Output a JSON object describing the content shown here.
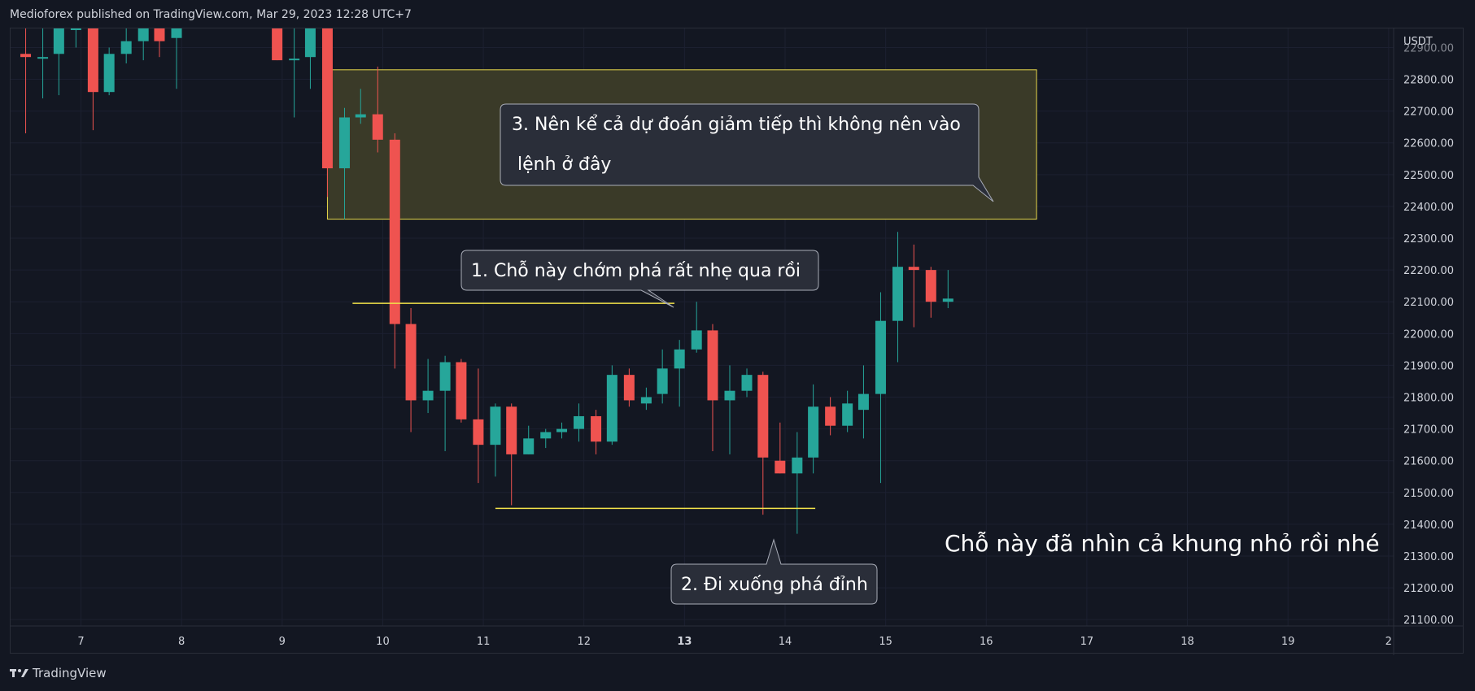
{
  "header": {
    "publisher_line": "Medioforex published on TradingView.com, Mar 29, 2023 12:28 UTC+7"
  },
  "footer": {
    "brand": "TradingView"
  },
  "colors": {
    "background": "#131722",
    "bull": "#26a69a",
    "bear": "#ef5350",
    "zone_fill": "#3a3a28",
    "zone_border": "#e6d84a",
    "level_line": "#f2e24a",
    "callout_bg": "#2a2e39",
    "callout_border": "#a9adb8",
    "grid": "#1c2030"
  },
  "chart_data": {
    "type": "candlestick",
    "currency_label": "USDT",
    "y_ticks": [
      "22900.00",
      "22800.00",
      "22700.00",
      "22600.00",
      "22500.00",
      "22400.00",
      "22300.00",
      "22200.00",
      "22100.00",
      "22000.00",
      "21900.00",
      "21800.00",
      "21700.00",
      "21600.00",
      "21500.00",
      "21400.00",
      "21300.00",
      "21200.00",
      "21100.00"
    ],
    "ylim": [
      21080,
      22960
    ],
    "x_ticks": [
      {
        "label": "7",
        "bold": false
      },
      {
        "label": "8",
        "bold": false
      },
      {
        "label": "9",
        "bold": false
      },
      {
        "label": "10",
        "bold": false
      },
      {
        "label": "11",
        "bold": false
      },
      {
        "label": "12",
        "bold": false
      },
      {
        "label": "13",
        "bold": true
      },
      {
        "label": "14",
        "bold": false
      },
      {
        "label": "15",
        "bold": false
      },
      {
        "label": "16",
        "bold": false
      },
      {
        "label": "17",
        "bold": false
      },
      {
        "label": "18",
        "bold": false
      },
      {
        "label": "19",
        "bold": false
      },
      {
        "label": "2",
        "bold": false
      }
    ],
    "x_range_days": [
      6.3,
      20.05
    ],
    "candles": [
      {
        "t": 6.45,
        "o": 22880,
        "h": 22960,
        "l": 22630,
        "c": 22870
      },
      {
        "t": 6.62,
        "o": 22870,
        "h": 22960,
        "l": 22740,
        "c": 22870
      },
      {
        "t": 6.78,
        "o": 22880,
        "h": 22990,
        "l": 22750,
        "c": 22990
      },
      {
        "t": 6.95,
        "o": 22960,
        "h": 23010,
        "l": 22900,
        "c": 22960
      },
      {
        "t": 7.12,
        "o": 22990,
        "h": 23010,
        "l": 22640,
        "c": 22760
      },
      {
        "t": 7.28,
        "o": 22760,
        "h": 22900,
        "l": 22750,
        "c": 22880
      },
      {
        "t": 7.45,
        "o": 22880,
        "h": 22980,
        "l": 22850,
        "c": 22920
      },
      {
        "t": 7.62,
        "o": 22920,
        "h": 23010,
        "l": 22860,
        "c": 22990
      },
      {
        "t": 7.78,
        "o": 22990,
        "h": 23010,
        "l": 22870,
        "c": 22920
      },
      {
        "t": 7.95,
        "o": 22930,
        "h": 23010,
        "l": 22770,
        "c": 22990
      },
      {
        "t": 8.95,
        "o": 22990,
        "h": 23010,
        "l": 22860,
        "c": 22860
      },
      {
        "t": 9.12,
        "o": 22860,
        "h": 22990,
        "l": 22680,
        "c": 22865
      },
      {
        "t": 9.28,
        "o": 22870,
        "h": 22990,
        "l": 22770,
        "c": 22960
      },
      {
        "t": 9.45,
        "o": 22960,
        "h": 22980,
        "l": 22430,
        "c": 22520
      },
      {
        "t": 9.62,
        "o": 22520,
        "h": 22710,
        "l": 22360,
        "c": 22680
      },
      {
        "t": 9.78,
        "o": 22680,
        "h": 22770,
        "l": 22660,
        "c": 22690
      },
      {
        "t": 9.95,
        "o": 22690,
        "h": 22840,
        "l": 22570,
        "c": 22610
      },
      {
        "t": 10.12,
        "o": 22610,
        "h": 22630,
        "l": 21890,
        "c": 22030
      },
      {
        "t": 10.28,
        "o": 22030,
        "h": 22080,
        "l": 21690,
        "c": 21790
      },
      {
        "t": 10.45,
        "o": 21790,
        "h": 21920,
        "l": 21750,
        "c": 21820
      },
      {
        "t": 10.62,
        "o": 21820,
        "h": 21930,
        "l": 21630,
        "c": 21910
      },
      {
        "t": 10.78,
        "o": 21910,
        "h": 21920,
        "l": 21720,
        "c": 21730
      },
      {
        "t": 10.95,
        "o": 21730,
        "h": 21890,
        "l": 21530,
        "c": 21650
      },
      {
        "t": 11.12,
        "o": 21650,
        "h": 21780,
        "l": 21550,
        "c": 21770
      },
      {
        "t": 11.28,
        "o": 21770,
        "h": 21780,
        "l": 21460,
        "c": 21620
      },
      {
        "t": 11.45,
        "o": 21620,
        "h": 21710,
        "l": 21620,
        "c": 21670
      },
      {
        "t": 11.62,
        "o": 21670,
        "h": 21700,
        "l": 21640,
        "c": 21690
      },
      {
        "t": 11.78,
        "o": 21690,
        "h": 21720,
        "l": 21670,
        "c": 21700
      },
      {
        "t": 11.95,
        "o": 21700,
        "h": 21780,
        "l": 21660,
        "c": 21740
      },
      {
        "t": 12.12,
        "o": 21740,
        "h": 21760,
        "l": 21620,
        "c": 21660
      },
      {
        "t": 12.28,
        "o": 21660,
        "h": 21900,
        "l": 21650,
        "c": 21870
      },
      {
        "t": 12.45,
        "o": 21870,
        "h": 21890,
        "l": 21770,
        "c": 21790
      },
      {
        "t": 12.62,
        "o": 21780,
        "h": 21830,
        "l": 21760,
        "c": 21800
      },
      {
        "t": 12.78,
        "o": 21810,
        "h": 21950,
        "l": 21780,
        "c": 21890
      },
      {
        "t": 12.95,
        "o": 21890,
        "h": 21980,
        "l": 21770,
        "c": 21950
      },
      {
        "t": 13.12,
        "o": 21950,
        "h": 22100,
        "l": 21940,
        "c": 22010
      },
      {
        "t": 13.28,
        "o": 22010,
        "h": 22030,
        "l": 21630,
        "c": 21790
      },
      {
        "t": 13.45,
        "o": 21790,
        "h": 21900,
        "l": 21620,
        "c": 21820
      },
      {
        "t": 13.62,
        "o": 21820,
        "h": 21890,
        "l": 21800,
        "c": 21870
      },
      {
        "t": 13.78,
        "o": 21870,
        "h": 21880,
        "l": 21430,
        "c": 21610
      },
      {
        "t": 13.95,
        "o": 21600,
        "h": 21720,
        "l": 21560,
        "c": 21560
      },
      {
        "t": 14.12,
        "o": 21560,
        "h": 21690,
        "l": 21370,
        "c": 21610
      },
      {
        "t": 14.28,
        "o": 21610,
        "h": 21840,
        "l": 21560,
        "c": 21770
      },
      {
        "t": 14.45,
        "o": 21770,
        "h": 21800,
        "l": 21680,
        "c": 21710
      },
      {
        "t": 14.62,
        "o": 21710,
        "h": 21820,
        "l": 21690,
        "c": 21780
      },
      {
        "t": 14.78,
        "o": 21760,
        "h": 21900,
        "l": 21670,
        "c": 21810
      },
      {
        "t": 14.95,
        "o": 21810,
        "h": 22130,
        "l": 21530,
        "c": 22040
      },
      {
        "t": 15.12,
        "o": 22040,
        "h": 22320,
        "l": 21910,
        "c": 22210
      },
      {
        "t": 15.28,
        "o": 22210,
        "h": 22280,
        "l": 22020,
        "c": 22200
      },
      {
        "t": 15.45,
        "o": 22200,
        "h": 22210,
        "l": 22050,
        "c": 22100
      },
      {
        "t": 15.62,
        "o": 22100,
        "h": 22200,
        "l": 22080,
        "c": 22110
      }
    ],
    "supply_zone": {
      "t_start": 9.45,
      "t_end": 16.5,
      "top": 22830,
      "bottom": 22360
    },
    "level_lines": [
      {
        "name": "breakout-high-line",
        "t_start": 9.7,
        "t_end": 12.9,
        "price": 22095
      },
      {
        "name": "support-low-line",
        "t_start": 11.12,
        "t_end": 14.3,
        "price": 21450
      }
    ],
    "annotations": {
      "callout_1": "1. Chỗ này chớm phá rất nhẹ qua rồi",
      "callout_2": "2. Đi xuống phá đỉnh",
      "callout_3_line1": "3. Nên kể cả dự đoán giảm tiếp thì không nên vào",
      "callout_3_line2": " lệnh ở đây",
      "note": "Chỗ này đã nhìn cả khung nhỏ rồi nhé"
    }
  }
}
